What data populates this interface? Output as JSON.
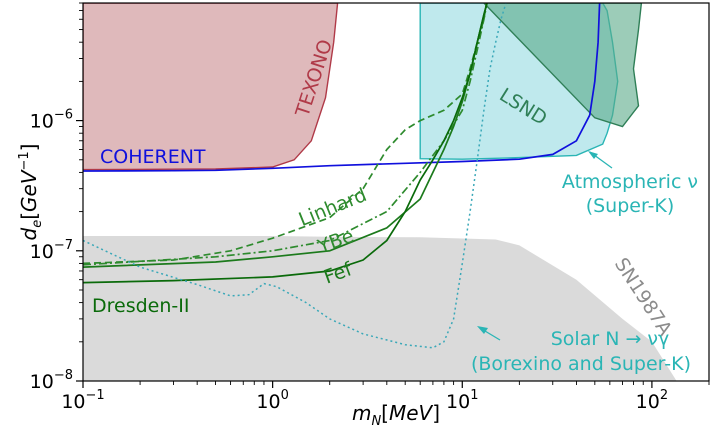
{
  "chart_data": {
    "type": "area",
    "title": "",
    "xlabel": "m_N[MeV]",
    "ylabel": "d_e[GeV^-1]",
    "xscale": "log",
    "yscale": "log",
    "xlim": [
      0.1,
      200
    ],
    "ylim": [
      1e-08,
      8e-06
    ],
    "grid": false,
    "xticks": [
      {
        "value": 0.1,
        "base": "10",
        "exp": "−1"
      },
      {
        "value": 1,
        "base": "10",
        "exp": "0"
      },
      {
        "value": 10,
        "base": "10",
        "exp": "1"
      },
      {
        "value": 100,
        "base": "10",
        "exp": "2"
      }
    ],
    "yticks": [
      {
        "value": 1e-08,
        "base": "10",
        "exp": "−8"
      },
      {
        "value": 1e-07,
        "base": "10",
        "exp": "−7"
      },
      {
        "value": 1e-06,
        "base": "10",
        "exp": "−6"
      }
    ],
    "regions": [
      {
        "name": "SN1987A",
        "color": "#d3d3d3",
        "opacity": 0.85,
        "points": [
          [
            0.1,
            1.3e-07
          ],
          [
            1,
            1.3e-07
          ],
          [
            2,
            1.28e-07
          ],
          [
            6,
            1.27e-07
          ],
          [
            15,
            1.22e-07
          ],
          [
            20,
            1.1e-07
          ],
          [
            40,
            6e-08
          ],
          [
            70,
            3e-08
          ],
          [
            100,
            2e-08
          ],
          [
            135,
            1e-08
          ],
          [
            0.1,
            1e-08
          ]
        ]
      },
      {
        "name": "TEXONO",
        "color": "#c98a8e",
        "opacity": 0.6,
        "stroke": "#b03a48",
        "points": [
          [
            0.1,
            8e-06
          ],
          [
            0.1,
            4.2e-07
          ],
          [
            0.5,
            4.25e-07
          ],
          [
            1,
            4.4e-07
          ],
          [
            1.3,
            5e-07
          ],
          [
            1.6,
            7e-07
          ],
          [
            1.9,
            1.5e-06
          ],
          [
            2.1,
            4e-06
          ],
          [
            2.2,
            8e-06
          ]
        ]
      },
      {
        "name": "Atmospheric ν (Super-K)",
        "color": "#7fd3dc",
        "opacity": 0.5,
        "stroke": "#2ab5b5",
        "points": [
          [
            6,
            8e-06
          ],
          [
            6,
            5.1e-07
          ],
          [
            10,
            5.05e-07
          ],
          [
            20,
            5.2e-07
          ],
          [
            40,
            5.4e-07
          ],
          [
            55,
            6.6e-07
          ],
          [
            58,
            8e-07
          ],
          [
            62,
            1.1e-06
          ],
          [
            66,
            2e-06
          ],
          [
            62,
            4e-06
          ],
          [
            58,
            7e-06
          ],
          [
            55,
            8e-06
          ]
        ]
      },
      {
        "name": "LSND",
        "color": "#5aaa88",
        "opacity": 0.6,
        "stroke": "#2f7f57",
        "points": [
          [
            13,
            8e-06
          ],
          [
            50,
            1.05e-06
          ],
          [
            70,
            9e-07
          ],
          [
            85,
            1.3e-06
          ],
          [
            80,
            2.5e-06
          ],
          [
            85,
            5e-06
          ],
          [
            88,
            8e-06
          ]
        ]
      }
    ],
    "series": [
      {
        "name": "COHERENT",
        "color": "#1010dd",
        "dash": "",
        "points": [
          [
            0.1,
            4.1e-07
          ],
          [
            0.3,
            4.12e-07
          ],
          [
            0.5,
            4.15e-07
          ],
          [
            1,
            4.3e-07
          ],
          [
            2,
            4.5e-07
          ],
          [
            5,
            4.7e-07
          ],
          [
            10,
            4.85e-07
          ],
          [
            20,
            5.05e-07
          ],
          [
            30,
            5.5e-07
          ],
          [
            40,
            7e-07
          ],
          [
            47,
            1.1e-06
          ],
          [
            50,
            2e-06
          ],
          [
            52,
            4e-06
          ],
          [
            53,
            8e-06
          ]
        ]
      },
      {
        "name": "Linhard",
        "color": "#2e8b2e",
        "dash": "7,4",
        "points": [
          [
            0.1,
            8e-08
          ],
          [
            0.3,
            8.5e-08
          ],
          [
            0.6,
            1e-07
          ],
          [
            1,
            1.25e-07
          ],
          [
            2,
            1.8e-07
          ],
          [
            3,
            3e-07
          ],
          [
            4,
            6e-07
          ],
          [
            5,
            8.5e-07
          ],
          [
            6,
            1e-06
          ],
          [
            8,
            1.2e-06
          ],
          [
            10,
            1.6e-06
          ],
          [
            11,
            2.5e-06
          ],
          [
            12,
            4e-06
          ],
          [
            13,
            6e-06
          ],
          [
            13.4,
            8e-06
          ]
        ]
      },
      {
        "name": "YBe",
        "color": "#2e8b2e",
        "dash": "8,3,2,3",
        "points": [
          [
            0.1,
            7.8e-08
          ],
          [
            0.5,
            9e-08
          ],
          [
            1,
            1e-07
          ],
          [
            2,
            1.2e-07
          ],
          [
            4,
            2e-07
          ],
          [
            6,
            4e-07
          ],
          [
            8,
            7e-07
          ],
          [
            10,
            1.2e-06
          ],
          [
            11,
            2e-06
          ],
          [
            12,
            3.5e-06
          ],
          [
            13,
            6e-06
          ],
          [
            13.5,
            8e-06
          ]
        ]
      },
      {
        "name": "Fef",
        "color": "#1c7a1c",
        "dash": "",
        "points": [
          [
            0.1,
            7.5e-08
          ],
          [
            0.5,
            8.2e-08
          ],
          [
            1,
            9e-08
          ],
          [
            2,
            1e-07
          ],
          [
            4,
            1.5e-07
          ],
          [
            6,
            2.5e-07
          ],
          [
            7,
            4e-07
          ],
          [
            8,
            6e-07
          ],
          [
            9,
            9e-07
          ],
          [
            10,
            1.4e-06
          ],
          [
            11,
            2.3e-06
          ],
          [
            12,
            4e-06
          ],
          [
            13,
            6.5e-06
          ],
          [
            13.5,
            8e-06
          ]
        ]
      },
      {
        "name": "Dresden-II",
        "color": "#0a6a0a",
        "dash": "",
        "points": [
          [
            0.1,
            5.7e-08
          ],
          [
            0.3,
            5.9e-08
          ],
          [
            1,
            6.3e-08
          ],
          [
            2,
            7e-08
          ],
          [
            3,
            8.5e-08
          ],
          [
            4,
            1.2e-07
          ],
          [
            5,
            2e-07
          ],
          [
            6,
            3.5e-07
          ],
          [
            7,
            5e-07
          ],
          [
            8,
            7e-07
          ],
          [
            9,
            1e-06
          ],
          [
            10,
            1.5e-06
          ],
          [
            11,
            2.3e-06
          ],
          [
            12,
            4e-06
          ],
          [
            13,
            6.5e-06
          ],
          [
            13.5,
            8e-06
          ]
        ]
      },
      {
        "name": "Solar N → νγ (Borexino and Super-K)",
        "color": "#3aa8b8",
        "dash": "2,3",
        "points": [
          [
            0.1,
            1.2e-07
          ],
          [
            0.2,
            7.5e-08
          ],
          [
            0.4,
            5.5e-08
          ],
          [
            0.6,
            4.5e-08
          ],
          [
            0.75,
            4.6e-08
          ],
          [
            0.9,
            5.6e-08
          ],
          [
            1.05,
            5.3e-08
          ],
          [
            1.5,
            4e-08
          ],
          [
            2,
            3e-08
          ],
          [
            3,
            2.3e-08
          ],
          [
            5,
            1.9e-08
          ],
          [
            7,
            1.8e-08
          ],
          [
            8,
            2e-08
          ],
          [
            9,
            3e-08
          ],
          [
            10,
            8e-08
          ],
          [
            11,
            2e-07
          ],
          [
            12,
            5e-07
          ],
          [
            13,
            1.2e-06
          ],
          [
            14,
            2.5e-06
          ],
          [
            15,
            4e-06
          ],
          [
            16,
            6e-06
          ],
          [
            17,
            8e-06
          ]
        ]
      }
    ],
    "labels": [
      {
        "text": "TEXONO",
        "color": "#b03a48"
      },
      {
        "text": "LSND",
        "color": "#2f7f57"
      },
      {
        "text": "COHERENT",
        "color": "#1010dd"
      },
      {
        "text": "Linhard",
        "color": "#2e8b2e"
      },
      {
        "text": "YBe",
        "color": "#2e8b2e"
      },
      {
        "text": "Fef",
        "color": "#1c7a1c"
      },
      {
        "text": "Dresden-II",
        "color": "#0a6a0a"
      },
      {
        "text": "SN1987A",
        "color": "#8c8c8c"
      },
      {
        "text": "Atmospheric ν",
        "color": "#2ab5b5"
      },
      {
        "text": "(Super-K)",
        "color": "#2ab5b5"
      },
      {
        "text": "Solar N → νγ",
        "color": "#2ab5b5"
      },
      {
        "text": "(Borexino and Super-K)",
        "color": "#2ab5b5"
      }
    ]
  }
}
